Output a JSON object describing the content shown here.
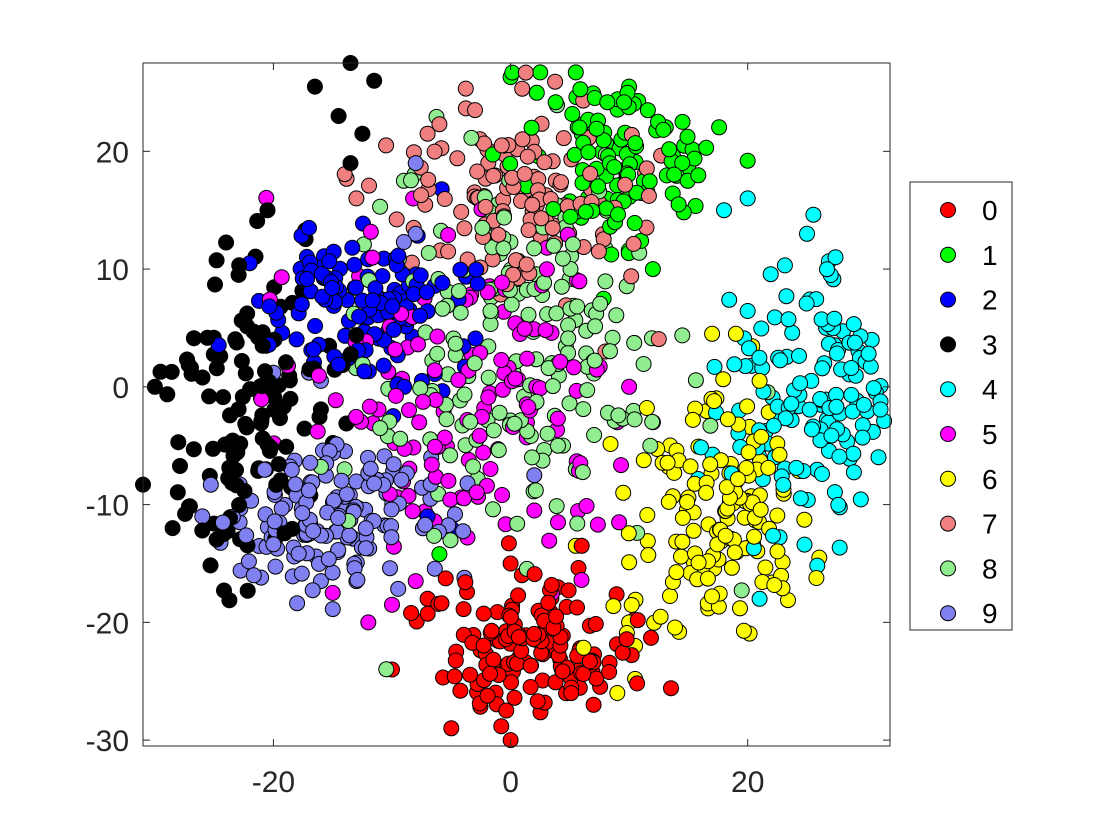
{
  "chart_data": {
    "type": "scatter",
    "title": "",
    "xlabel": "",
    "ylabel": "",
    "xlim": [
      -31,
      32
    ],
    "ylim": [
      -30.5,
      27.5
    ],
    "xticks": [
      -20,
      0,
      20
    ],
    "yticks": [
      -30,
      -20,
      -10,
      0,
      10,
      20
    ],
    "grid": false,
    "legend_position": "right-outside",
    "series": [
      {
        "name": "0",
        "color": "#ff0000",
        "cx": 2,
        "cy": -22,
        "sx": 4.2,
        "sy": 3.2,
        "n": 150,
        "extra": [
          [
            0,
            -30
          ],
          [
            -5,
            -29
          ],
          [
            -10,
            -24
          ],
          [
            7,
            -27
          ],
          [
            -7,
            -18
          ],
          [
            6,
            -13.5
          ]
        ]
      },
      {
        "name": "1",
        "color": "#00ff00",
        "cx": 9,
        "cy": 19,
        "sx": 3.6,
        "sy": 4.2,
        "n": 110,
        "extra": [
          [
            0,
            26.3
          ],
          [
            2.5,
            26.7
          ],
          [
            5.5,
            26.7
          ],
          [
            10,
            25.5
          ],
          [
            14.5,
            22.5
          ],
          [
            20,
            19.2
          ],
          [
            16.5,
            20.3
          ],
          [
            12,
            10
          ],
          [
            -6,
            -14.2
          ]
        ]
      },
      {
        "name": "2",
        "color": "#0000ff",
        "cx": -12,
        "cy": 7,
        "sx": 4.2,
        "sy": 3.6,
        "n": 130,
        "extra": [
          [
            -17,
            13.5
          ],
          [
            -22,
            10.5
          ],
          [
            -5,
            -12
          ],
          [
            -7,
            -11
          ]
        ]
      },
      {
        "name": "3",
        "color": "#000000",
        "cx": -22,
        "cy": -2,
        "sx": 3.6,
        "sy": 6.5,
        "n": 130,
        "extra": [
          [
            -13.5,
            27.5
          ],
          [
            -11.5,
            26
          ],
          [
            -16.5,
            25.5
          ],
          [
            -14.5,
            23
          ],
          [
            -12.5,
            21.5
          ],
          [
            -13.5,
            19
          ],
          [
            -20.5,
            15
          ],
          [
            -30,
            0
          ],
          [
            -31,
            -8.3
          ],
          [
            -28.5,
            -12
          ],
          [
            -26,
            -12.2
          ]
        ]
      },
      {
        "name": "4",
        "color": "#00ffff",
        "cx": 25,
        "cy": -1,
        "sx": 4.3,
        "sy": 6.5,
        "n": 140,
        "extra": [
          [
            20,
            16
          ],
          [
            18,
            15
          ],
          [
            25,
            13
          ],
          [
            27,
            9.5
          ],
          [
            31.5,
            -2.9
          ],
          [
            29.5,
            4.3
          ],
          [
            21,
            -18
          ]
        ]
      },
      {
        "name": "5",
        "color": "#ff00ff",
        "cx": -3,
        "cy": 0,
        "sx": 6.8,
        "sy": 7.5,
        "n": 140,
        "extra": [
          [
            -15,
            -17.5
          ],
          [
            -12,
            -20
          ],
          [
            -10,
            -18.5
          ],
          [
            -8,
            -16.5
          ],
          [
            2,
            -10.5
          ],
          [
            4,
            -11.5
          ],
          [
            9,
            -3
          ],
          [
            10,
            0
          ]
        ]
      },
      {
        "name": "6",
        "color": "#ffff00",
        "cx": 17,
        "cy": -11,
        "sx": 3.6,
        "sy": 5.2,
        "n": 150,
        "extra": [
          [
            10,
            -20
          ],
          [
            10.5,
            -22
          ],
          [
            10.5,
            -24.8
          ],
          [
            9,
            -26
          ],
          [
            12,
            -3
          ],
          [
            11.5,
            -1.8
          ],
          [
            9.5,
            -9
          ],
          [
            5.5,
            -13.5
          ],
          [
            19,
            4.5
          ],
          [
            17,
            4.5
          ],
          [
            21,
            0.5
          ]
        ]
      },
      {
        "name": "7",
        "color": "#f08080",
        "cx": 1,
        "cy": 17,
        "sx": 5.2,
        "sy": 4.2,
        "n": 130,
        "extra": [
          [
            -3,
            23.5
          ],
          [
            -6,
            22.3
          ],
          [
            -7,
            21.5
          ],
          [
            -10.5,
            20.5
          ],
          [
            -13,
            16
          ],
          [
            8,
            3
          ]
        ]
      },
      {
        "name": "8",
        "color": "#90ee90",
        "cx": 1,
        "cy": 3,
        "sx": 6.5,
        "sy": 8,
        "n": 190,
        "extra": [
          [
            -11,
            15.3
          ],
          [
            -9,
            17.5
          ],
          [
            -11,
            -3.5
          ],
          [
            -14,
            -7
          ],
          [
            -16,
            -6.8
          ],
          [
            4,
            -5
          ],
          [
            5.5,
            -7
          ]
        ]
      },
      {
        "name": "9",
        "color": "#8080f0",
        "cx": -15,
        "cy": -11,
        "sx": 5.2,
        "sy": 3.3,
        "n": 150,
        "extra": [
          [
            -8,
            19
          ],
          [
            -8,
            13
          ],
          [
            -9,
            12.3
          ],
          [
            -20,
            1.2
          ],
          [
            -17,
            1.2
          ],
          [
            -16,
            0.5
          ],
          [
            -13,
            -16.5
          ],
          [
            -16,
            -16.5
          ],
          [
            2,
            -7.5
          ],
          [
            -26,
            -11
          ]
        ]
      }
    ]
  }
}
